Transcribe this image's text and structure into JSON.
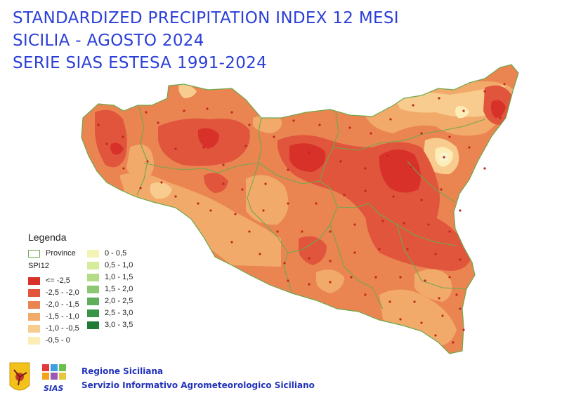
{
  "title_lines": [
    "STANDARDIZED PRECIPITATION INDEX 12 MESI",
    "SICILIA - AGOSTO 2024",
    "SERIE SIAS ESTESA 1991-2024"
  ],
  "legend": {
    "title": "Legenda",
    "province_label": "Province",
    "spi_label": "SPI12",
    "province_color": "#6fa84c",
    "negative_classes": [
      {
        "label": "<= -2,5",
        "color": "#d7312a"
      },
      {
        "label": "-2,5 - -2,0",
        "color": "#e0553c"
      },
      {
        "label": "-2,0 - -1,5",
        "color": "#ea8552"
      },
      {
        "label": "-1,5 - -1,0",
        "color": "#f2aa6a"
      },
      {
        "label": "-1,0 - -0,5",
        "color": "#f8cc8e"
      },
      {
        "label": "-0,5 - 0",
        "color": "#fcecb6"
      }
    ],
    "positive_classes": [
      {
        "label": "0 - 0,5",
        "color": "#f3f3b4"
      },
      {
        "label": "0,5 - 1,0",
        "color": "#d6ec9a"
      },
      {
        "label": "1,0 - 1,5",
        "color": "#b3dd84"
      },
      {
        "label": "1,5 - 2,0",
        "color": "#8cc772"
      },
      {
        "label": "2,0 - 2,5",
        "color": "#5fae5c"
      },
      {
        "label": "2,5 - 3,0",
        "color": "#3a9447"
      },
      {
        "label": "3,0 - 3,5",
        "color": "#1f7a35"
      }
    ]
  },
  "footer": {
    "org_name": "Regione Siciliana",
    "service_name": "Servizio Informativo Agrometeorologico Siciliano",
    "logo_text": "SIAS"
  },
  "colors": {
    "title": "#2b3fd8",
    "station_dot": "#c0281f",
    "footer_text": "#2233bb"
  }
}
